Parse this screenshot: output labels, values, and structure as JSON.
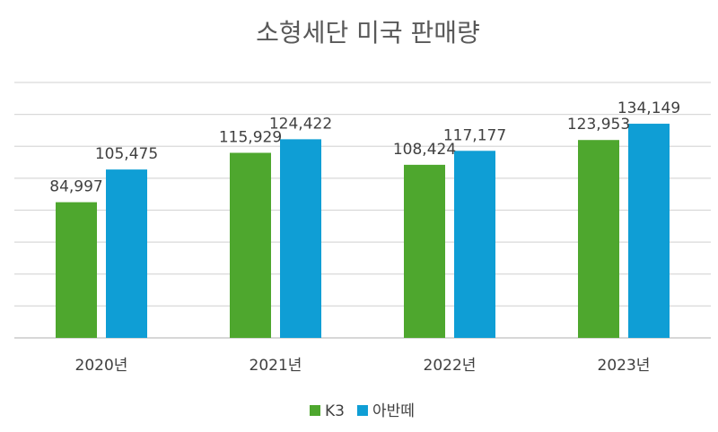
{
  "chart_data": {
    "type": "bar",
    "title": "소형세단 미국 판매량",
    "xlabel": "",
    "ylabel": "",
    "categories": [
      "2020년",
      "2021년",
      "2022년",
      "2023년"
    ],
    "series": [
      {
        "name": "K3",
        "color": "#4ea72e",
        "values": [
          84997,
          115929,
          108424,
          123953
        ],
        "labels": [
          "84,997",
          "115,929",
          "108,424",
          "123,953"
        ]
      },
      {
        "name": "아반떼",
        "color": "#0f9ed5",
        "values": [
          105475,
          124422,
          117177,
          134149
        ],
        "labels": [
          "105,475",
          "124,422",
          "117,177",
          "134,149"
        ]
      }
    ],
    "ylim": [
      0,
      160000
    ],
    "y_tick_step": 20000,
    "y_tick_labels_visible": false,
    "grid": true,
    "legend_position": "bottom"
  }
}
